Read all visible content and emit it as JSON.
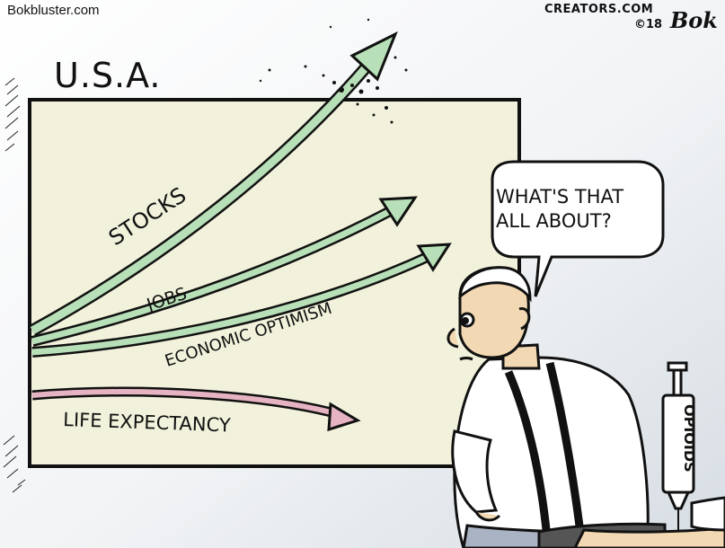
{
  "header": {
    "site": "Bokbluster.com",
    "credit": "CREATORS.COM",
    "year": "©18",
    "signature": "Bok"
  },
  "chart": {
    "country": "U.S.A.",
    "lines": [
      {
        "label": "STOCKS",
        "color": "#b8e0b8",
        "trend": "rising sharply, breaking through the top of the board"
      },
      {
        "label": "JOBS",
        "color": "#b8e0b8",
        "trend": "rising"
      },
      {
        "label": "ECONOMIC OPTIMISM",
        "color": "#b8e0b8",
        "trend": "rising"
      },
      {
        "label": "LIFE EXPECTANCY",
        "color": "#e6b3c2",
        "trend": "falling"
      }
    ]
  },
  "speech_bubble": {
    "line1": "WHAT'S THAT",
    "line2": "ALL ABOUT?"
  },
  "syringe": {
    "label": "OPIOIDS"
  },
  "colors": {
    "board": "#f2f2dc",
    "rising_arrow": "#b8e0b8",
    "falling_arrow": "#e6b3c2",
    "backdrop": "#e4e8ec"
  }
}
